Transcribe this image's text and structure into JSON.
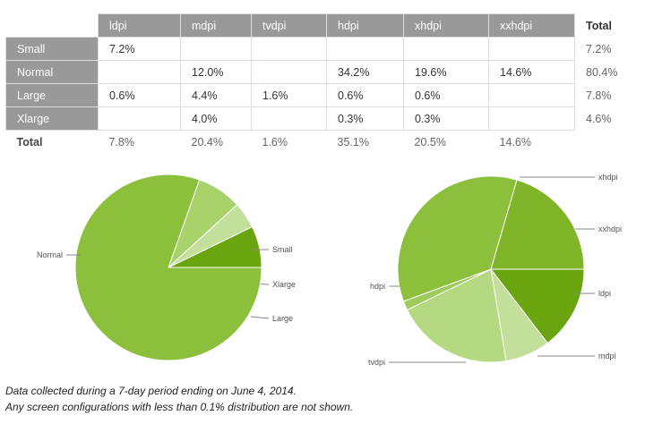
{
  "table": {
    "columns": [
      "ldpi",
      "mdpi",
      "tvdpi",
      "hdpi",
      "xhdpi",
      "xxhdpi"
    ],
    "total_label": "Total",
    "rows": [
      {
        "label": "Small",
        "cells": [
          "7.2%",
          "",
          "",
          "",
          "",
          ""
        ],
        "total": "7.2%"
      },
      {
        "label": "Normal",
        "cells": [
          "",
          "12.0%",
          "",
          "34.2%",
          "19.6%",
          "14.6%"
        ],
        "total": "80.4%"
      },
      {
        "label": "Large",
        "cells": [
          "0.6%",
          "4.4%",
          "1.6%",
          "0.6%",
          "0.6%",
          ""
        ],
        "total": "7.8%"
      },
      {
        "label": "Xlarge",
        "cells": [
          "",
          "4.0%",
          "",
          "0.3%",
          "0.3%",
          ""
        ],
        "total": "4.6%"
      }
    ],
    "footer": {
      "label": "Total",
      "cells": [
        "7.8%",
        "20.4%",
        "1.6%",
        "35.1%",
        "20.5%",
        "14.6%"
      ]
    }
  },
  "chart_data": [
    {
      "type": "pie",
      "slices": [
        {
          "label": "Small",
          "value": 7.2,
          "color": "#6aa510"
        },
        {
          "label": "Xlarge",
          "value": 4.6,
          "color": "#c3e09a"
        },
        {
          "label": "Large",
          "value": 7.8,
          "color": "#a8d26a"
        },
        {
          "label": "Normal",
          "value": 80.4,
          "color": "#8cbf3c"
        }
      ]
    },
    {
      "type": "pie",
      "slices": [
        {
          "label": "xxhdpi",
          "value": 14.6,
          "color": "#6aa510"
        },
        {
          "label": "ldpi",
          "value": 7.8,
          "color": "#c3e09a"
        },
        {
          "label": "mdpi",
          "value": 20.4,
          "color": "#b5d981"
        },
        {
          "label": "tvdpi",
          "value": 1.6,
          "color": "#9fcb5c"
        },
        {
          "label": "hdpi",
          "value": 35.1,
          "color": "#8cbf3c"
        },
        {
          "label": "xhdpi",
          "value": 20.5,
          "color": "#80b52a"
        }
      ]
    }
  ],
  "notes": [
    "Data collected during a 7-day period ending on June 4, 2014.",
    "Any screen configurations with less than 0.1% distribution are not shown."
  ]
}
